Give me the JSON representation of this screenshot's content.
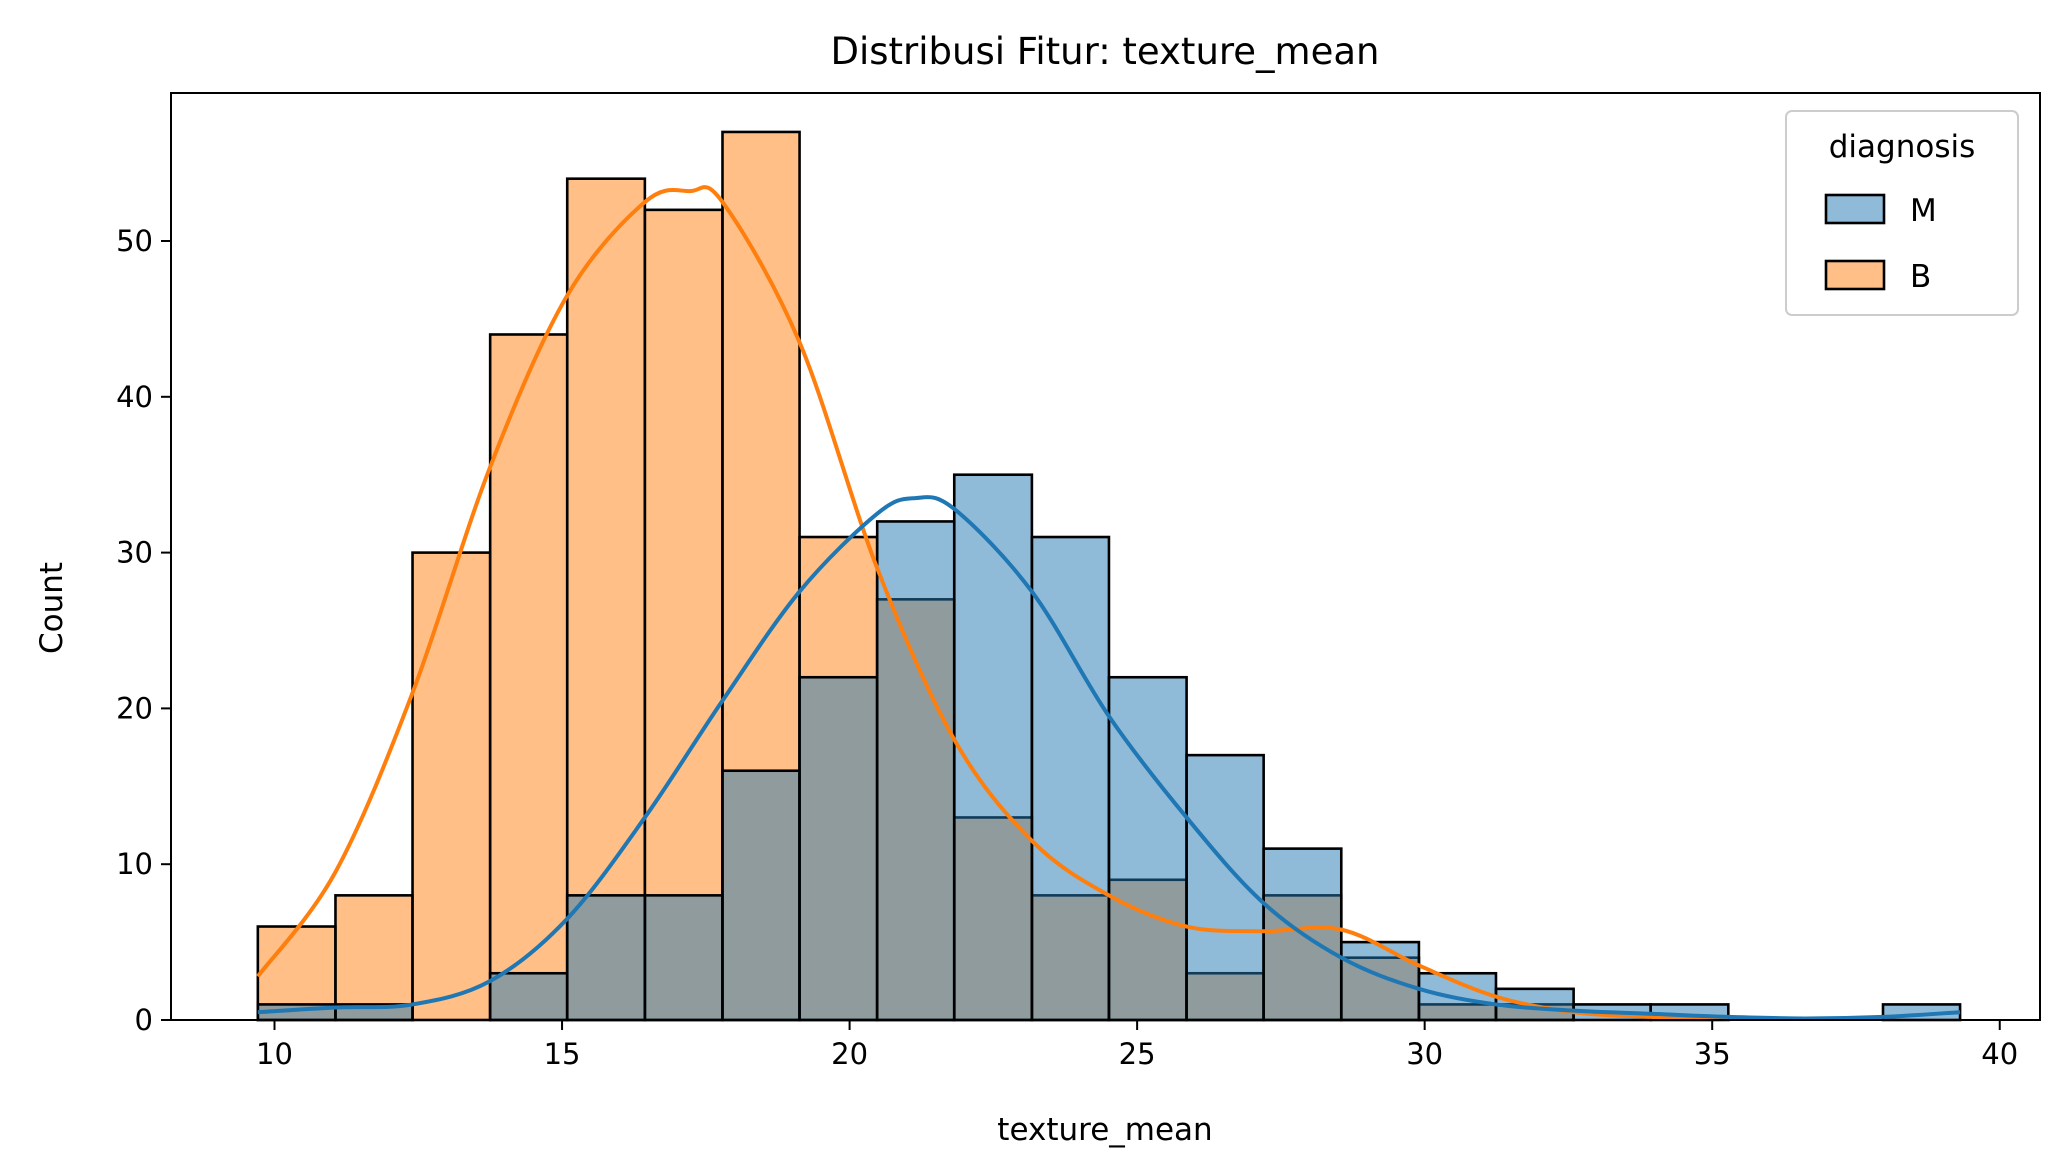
{
  "chart_data": {
    "type": "histogram",
    "title": "Distribusi Fitur: texture_mean",
    "xlabel": "texture_mean",
    "ylabel": "Count",
    "xlim": [
      8.2,
      40.7
    ],
    "ylim": [
      0,
      59.5
    ],
    "xticks": [
      10,
      15,
      20,
      25,
      30,
      35,
      40
    ],
    "yticks": [
      0,
      10,
      20,
      30,
      40,
      50
    ],
    "grid": false,
    "legend": {
      "title": "diagnosis",
      "placement": "top-right"
    },
    "bin_edges": [
      9.71,
      11.06,
      12.4,
      13.75,
      15.09,
      16.44,
      17.79,
      19.13,
      20.48,
      21.82,
      23.17,
      24.51,
      25.86,
      27.2,
      28.55,
      29.9,
      31.24,
      32.59,
      33.93,
      35.28,
      36.62,
      37.97,
      39.31
    ],
    "series": [
      {
        "name": "M",
        "color": "#1f77b4",
        "fill": "#8fb9db",
        "counts": [
          1,
          1,
          0,
          3,
          8,
          8,
          16,
          22,
          32,
          35,
          31,
          22,
          17,
          11,
          5,
          3,
          2,
          1,
          1,
          0,
          0,
          1
        ],
        "kde_x": [
          9.71,
          11.06,
          12.4,
          13.75,
          15.09,
          16.44,
          17.79,
          19.13,
          20.48,
          21.14,
          21.82,
          23.17,
          24.51,
          25.86,
          27.2,
          28.55,
          29.9,
          31.24,
          32.59,
          33.93,
          35.28,
          36.62,
          37.97,
          39.31
        ],
        "kde_y": [
          0.5,
          0.8,
          1.0,
          2.5,
          6.5,
          13.0,
          20.5,
          27.5,
          32.5,
          33.5,
          32.8,
          27.5,
          19.5,
          13.0,
          7.5,
          4.0,
          2.0,
          1.0,
          0.6,
          0.4,
          0.2,
          0.1,
          0.2,
          0.5
        ]
      },
      {
        "name": "B",
        "color": "#ff7f0e",
        "fill": "#ffbe86",
        "counts": [
          6,
          8,
          30,
          44,
          54,
          52,
          57,
          31,
          27,
          13,
          8,
          9,
          3,
          8,
          4,
          1,
          1,
          0,
          0,
          0,
          0,
          0
        ],
        "kde_x": [
          9.71,
          11.06,
          12.4,
          13.75,
          15.09,
          16.44,
          17.22,
          17.79,
          19.13,
          20.48,
          21.82,
          23.17,
          24.51,
          25.86,
          27.2,
          28.55,
          29.9,
          31.24,
          32.59,
          33.93,
          35.28
        ],
        "kde_y": [
          2.8,
          9.5,
          21.0,
          35.5,
          46.5,
          52.5,
          53.2,
          52.5,
          43.5,
          29.0,
          18.0,
          11.5,
          8.0,
          6.0,
          5.7,
          5.8,
          3.5,
          1.5,
          0.5,
          0.2,
          0.05
        ]
      }
    ]
  }
}
